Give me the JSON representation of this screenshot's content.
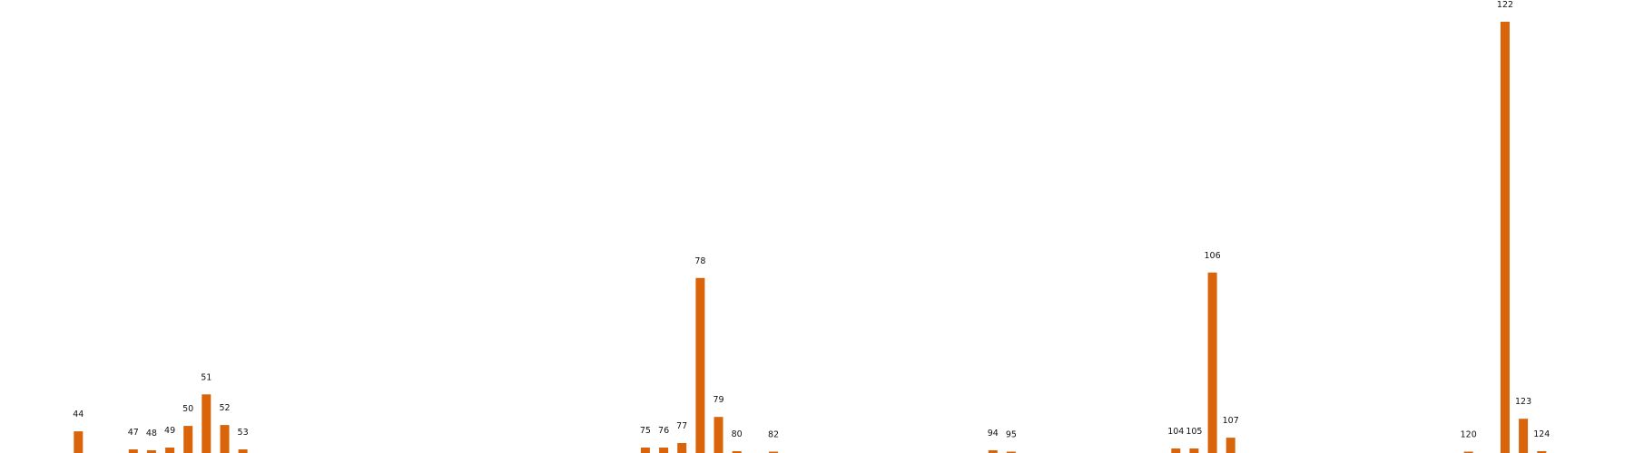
{
  "chart_data": {
    "type": "bar",
    "color": "#d9640a",
    "bars": [
      {
        "x": 44,
        "value": 24
      },
      {
        "x": 47,
        "value": 4
      },
      {
        "x": 48,
        "value": 3
      },
      {
        "x": 49,
        "value": 6
      },
      {
        "x": 50,
        "value": 30
      },
      {
        "x": 51,
        "value": 65
      },
      {
        "x": 52,
        "value": 31
      },
      {
        "x": 53,
        "value": 4
      },
      {
        "x": 75,
        "value": 6
      },
      {
        "x": 76,
        "value": 6
      },
      {
        "x": 77,
        "value": 11
      },
      {
        "x": 78,
        "value": 194
      },
      {
        "x": 79,
        "value": 40
      },
      {
        "x": 80,
        "value": 2
      },
      {
        "x": 82,
        "value": 1
      },
      {
        "x": 94,
        "value": 3
      },
      {
        "x": 95,
        "value": 1
      },
      {
        "x": 104,
        "value": 5
      },
      {
        "x": 105,
        "value": 5
      },
      {
        "x": 106,
        "value": 200
      },
      {
        "x": 107,
        "value": 17
      },
      {
        "x": 120,
        "value": 1
      },
      {
        "x": 122,
        "value": 478
      },
      {
        "x": 123,
        "value": 38
      },
      {
        "x": 124,
        "value": 2
      }
    ],
    "xlim": [
      40,
      128
    ],
    "ylim": [
      0,
      478
    ],
    "title": "",
    "xlabel": "",
    "ylabel": "",
    "grid": false
  }
}
